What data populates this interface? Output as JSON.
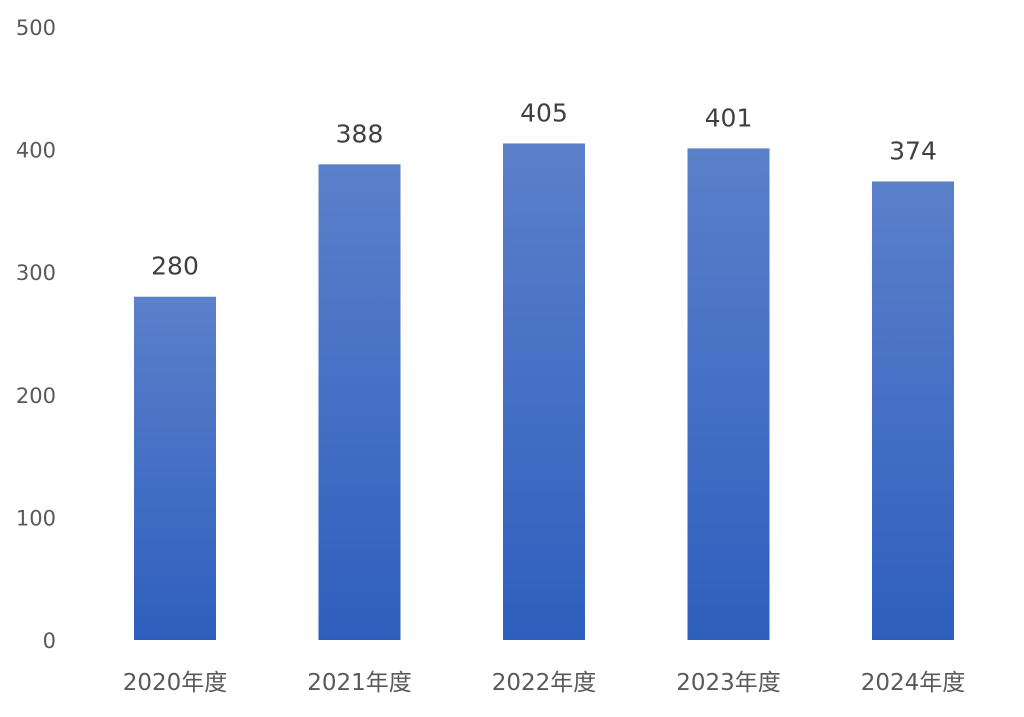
{
  "chart_data": {
    "type": "bar",
    "categories": [
      "2020年度",
      "2021年度",
      "2022年度",
      "2023年度",
      "2024年度"
    ],
    "values": [
      280,
      388,
      405,
      401,
      374
    ],
    "data_labels": [
      "280",
      "388",
      "405",
      "401",
      "374"
    ],
    "title": "",
    "xlabel": "",
    "ylabel": "",
    "ylim": [
      0,
      500
    ],
    "yticks": [
      0,
      100,
      200,
      300,
      400,
      500
    ],
    "ytick_labels": [
      "0",
      "100",
      "200",
      "300",
      "400",
      "500"
    ],
    "grid": false,
    "legend": "none",
    "colors": {
      "bar_top": "#5b80ca",
      "bar_bottom": "#2e5fbe",
      "axis_text": "#595959",
      "label_text": "#404040"
    }
  }
}
